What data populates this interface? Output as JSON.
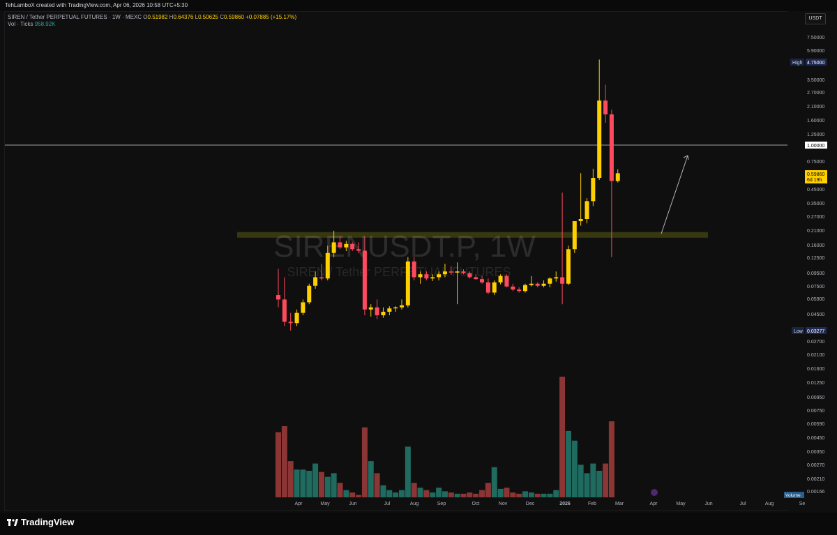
{
  "topbar": {
    "credit": "TehLamboX created with TradingView.com, Apr 06, 2026 10:58 UTC+5:30"
  },
  "legend": {
    "symbol_line": "SIREN / Tether PERPETUAL FUTURES · 1W · MEXC",
    "o_label": "O",
    "o_value": "0.51982",
    "h_label": "H",
    "h_value": "0.64376",
    "l_label": "L",
    "l_value": "0.50625",
    "c_label": "C",
    "c_value": "0.59860",
    "change": "+0.07885 (+15.17%)",
    "vol_label": "Vol · Ticks",
    "vol_value": "958.92K"
  },
  "currency_button": "USDT",
  "watermark": {
    "symbol": "SIRENUSDT.P, 1W",
    "description": "SIREN / Tether PERPETUAL FUTURES"
  },
  "footer": {
    "brand": "TradingView"
  },
  "colors": {
    "up": "#ffd000",
    "down": "#ff4a5e",
    "vol_up": "#1f6b60",
    "vol_down": "#8c3535",
    "zone": "#5a5a12"
  },
  "chart_data": {
    "type": "candlestick",
    "scale": "log",
    "price_axis_labels": [
      "7.50000",
      "5.90000",
      "3.50000",
      "2.70000",
      "2.10000",
      "1.60000",
      "1.25000",
      "0.75000",
      "0.45000",
      "0.35000",
      "0.27000",
      "0.21000",
      "0.16000",
      "0.12500",
      "0.09500",
      "0.07500",
      "0.05900",
      "0.04500",
      "0.02700",
      "0.02100",
      "0.01600",
      "0.01250",
      "0.00950",
      "0.00750",
      "0.00590",
      "0.00450",
      "0.00350",
      "0.00270",
      "0.00210",
      "0.00166"
    ],
    "high_marker": {
      "label": "High",
      "value": "4.75000"
    },
    "low_marker": {
      "label": "Low",
      "value": "0.03277"
    },
    "horizontal_line": {
      "value": 1.0,
      "label": "1.00000"
    },
    "last_price": {
      "value": "0.59860",
      "countdown": "6d 19h"
    },
    "volume_label": "Volume",
    "time_axis_labels": [
      "Apr",
      "May",
      "Jun",
      "Jul",
      "Aug",
      "Sep",
      "Oct",
      "Nov",
      "Dec",
      "2026",
      "Feb",
      "Mar",
      "Apr",
      "May",
      "Jun",
      "Jul",
      "Aug",
      "Se"
    ],
    "support_zone": {
      "low": 0.185,
      "high": 0.205
    },
    "candles": [
      {
        "o": 0.065,
        "h": 0.105,
        "l": 0.052,
        "c": 0.06,
        "v": 0.54
      },
      {
        "o": 0.06,
        "h": 0.09,
        "l": 0.037,
        "c": 0.04,
        "v": 0.59
      },
      {
        "o": 0.04,
        "h": 0.047,
        "l": 0.034,
        "c": 0.039,
        "v": 0.3
      },
      {
        "o": 0.039,
        "h": 0.05,
        "l": 0.037,
        "c": 0.047,
        "v": 0.23
      },
      {
        "o": 0.047,
        "h": 0.06,
        "l": 0.045,
        "c": 0.057,
        "v": 0.23
      },
      {
        "o": 0.057,
        "h": 0.08,
        "l": 0.055,
        "c": 0.077,
        "v": 0.22
      },
      {
        "o": 0.077,
        "h": 0.1,
        "l": 0.073,
        "c": 0.09,
        "v": 0.28
      },
      {
        "o": 0.09,
        "h": 0.115,
        "l": 0.085,
        "c": 0.088,
        "v": 0.21
      },
      {
        "o": 0.088,
        "h": 0.16,
        "l": 0.085,
        "c": 0.14,
        "v": 0.17
      },
      {
        "o": 0.14,
        "h": 0.21,
        "l": 0.13,
        "c": 0.17,
        "v": 0.2
      },
      {
        "o": 0.17,
        "h": 0.19,
        "l": 0.15,
        "c": 0.155,
        "v": 0.12
      },
      {
        "o": 0.155,
        "h": 0.175,
        "l": 0.145,
        "c": 0.165,
        "v": 0.06
      },
      {
        "o": 0.165,
        "h": 0.17,
        "l": 0.145,
        "c": 0.15,
        "v": 0.04
      },
      {
        "o": 0.15,
        "h": 0.17,
        "l": 0.14,
        "c": 0.146,
        "v": 0.02
      },
      {
        "o": 0.146,
        "h": 0.19,
        "l": 0.045,
        "c": 0.05,
        "v": 0.58
      },
      {
        "o": 0.05,
        "h": 0.055,
        "l": 0.044,
        "c": 0.052,
        "v": 0.3
      },
      {
        "o": 0.052,
        "h": 0.06,
        "l": 0.042,
        "c": 0.045,
        "v": 0.2
      },
      {
        "o": 0.045,
        "h": 0.052,
        "l": 0.043,
        "c": 0.048,
        "v": 0.1
      },
      {
        "o": 0.048,
        "h": 0.053,
        "l": 0.045,
        "c": 0.051,
        "v": 0.06
      },
      {
        "o": 0.051,
        "h": 0.053,
        "l": 0.048,
        "c": 0.052,
        "v": 0.04
      },
      {
        "o": 0.052,
        "h": 0.06,
        "l": 0.05,
        "c": 0.054,
        "v": 0.06
      },
      {
        "o": 0.054,
        "h": 0.13,
        "l": 0.052,
        "c": 0.12,
        "v": 0.42
      },
      {
        "o": 0.12,
        "h": 0.13,
        "l": 0.085,
        "c": 0.09,
        "v": 0.12
      },
      {
        "o": 0.09,
        "h": 0.1,
        "l": 0.08,
        "c": 0.095,
        "v": 0.08
      },
      {
        "o": 0.095,
        "h": 0.1,
        "l": 0.085,
        "c": 0.088,
        "v": 0.06
      },
      {
        "o": 0.088,
        "h": 0.095,
        "l": 0.084,
        "c": 0.09,
        "v": 0.04
      },
      {
        "o": 0.09,
        "h": 0.1,
        "l": 0.085,
        "c": 0.095,
        "v": 0.08
      },
      {
        "o": 0.095,
        "h": 0.115,
        "l": 0.09,
        "c": 0.1,
        "v": 0.05
      },
      {
        "o": 0.1,
        "h": 0.11,
        "l": 0.094,
        "c": 0.098,
        "v": 0.04
      },
      {
        "o": 0.098,
        "h": 0.118,
        "l": 0.055,
        "c": 0.1,
        "v": 0.03
      },
      {
        "o": 0.1,
        "h": 0.104,
        "l": 0.095,
        "c": 0.097,
        "v": 0.03
      },
      {
        "o": 0.097,
        "h": 0.1,
        "l": 0.088,
        "c": 0.09,
        "v": 0.04
      },
      {
        "o": 0.09,
        "h": 0.095,
        "l": 0.086,
        "c": 0.087,
        "v": 0.03
      },
      {
        "o": 0.087,
        "h": 0.092,
        "l": 0.08,
        "c": 0.082,
        "v": 0.06
      },
      {
        "o": 0.082,
        "h": 0.088,
        "l": 0.066,
        "c": 0.068,
        "v": 0.12
      },
      {
        "o": 0.068,
        "h": 0.085,
        "l": 0.065,
        "c": 0.082,
        "v": 0.25
      },
      {
        "o": 0.082,
        "h": 0.095,
        "l": 0.079,
        "c": 0.092,
        "v": 0.07
      },
      {
        "o": 0.092,
        "h": 0.095,
        "l": 0.075,
        "c": 0.076,
        "v": 0.08
      },
      {
        "o": 0.076,
        "h": 0.08,
        "l": 0.07,
        "c": 0.072,
        "v": 0.04
      },
      {
        "o": 0.072,
        "h": 0.075,
        "l": 0.068,
        "c": 0.07,
        "v": 0.03
      },
      {
        "o": 0.07,
        "h": 0.08,
        "l": 0.068,
        "c": 0.078,
        "v": 0.05
      },
      {
        "o": 0.078,
        "h": 0.092,
        "l": 0.076,
        "c": 0.08,
        "v": 0.04
      },
      {
        "o": 0.08,
        "h": 0.082,
        "l": 0.075,
        "c": 0.077,
        "v": 0.03
      },
      {
        "o": 0.077,
        "h": 0.085,
        "l": 0.075,
        "c": 0.08,
        "v": 0.03
      },
      {
        "o": 0.08,
        "h": 0.09,
        "l": 0.075,
        "c": 0.088,
        "v": 0.03
      },
      {
        "o": 0.088,
        "h": 0.1,
        "l": 0.083,
        "c": 0.09,
        "v": 0.06
      },
      {
        "o": 0.09,
        "h": 0.42,
        "l": 0.055,
        "c": 0.08,
        "v": 1.0
      },
      {
        "o": 0.08,
        "h": 0.16,
        "l": 0.078,
        "c": 0.15,
        "v": 0.55
      },
      {
        "o": 0.15,
        "h": 0.25,
        "l": 0.14,
        "c": 0.25,
        "v": 0.47
      },
      {
        "o": 0.25,
        "h": 0.6,
        "l": 0.23,
        "c": 0.26,
        "v": 0.27
      },
      {
        "o": 0.26,
        "h": 0.38,
        "l": 0.24,
        "c": 0.36,
        "v": 0.2
      },
      {
        "o": 0.36,
        "h": 0.65,
        "l": 0.33,
        "c": 0.55,
        "v": 0.28
      },
      {
        "o": 0.55,
        "h": 4.75,
        "l": 0.53,
        "c": 2.25,
        "v": 0.22
      },
      {
        "o": 2.25,
        "h": 3.0,
        "l": 1.5,
        "c": 1.75,
        "v": 0.28
      },
      {
        "o": 1.75,
        "h": 1.9,
        "l": 0.13,
        "c": 0.52,
        "v": 0.63
      },
      {
        "o": 0.51982,
        "h": 0.64376,
        "l": 0.50625,
        "c": 0.5986,
        "v": 0.0
      }
    ]
  }
}
